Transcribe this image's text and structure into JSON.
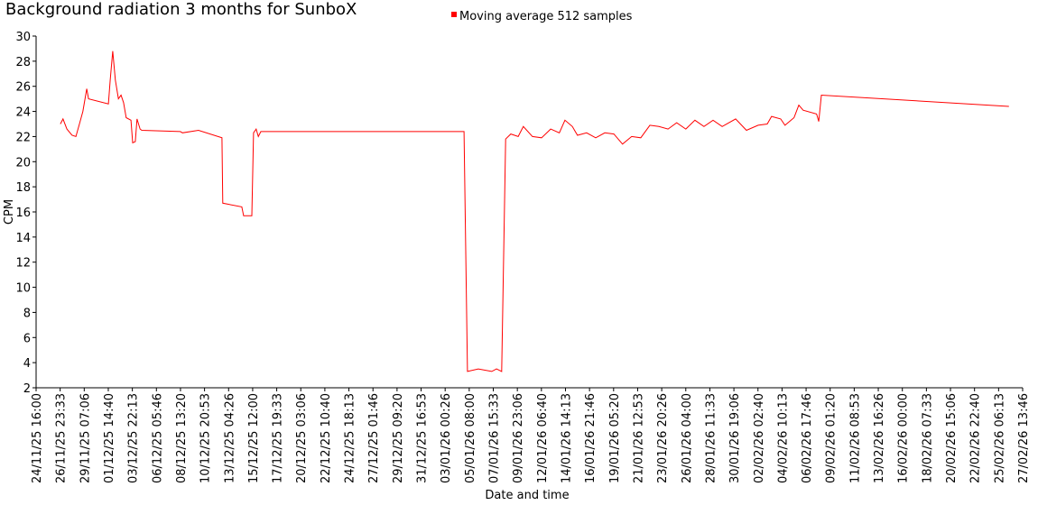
{
  "chart_data": {
    "type": "line",
    "title": "Background radiation 3 months for SunboX",
    "xlabel": "Date and time",
    "ylabel": "CPM",
    "legend": "top",
    "xlim": [
      "24/11/25 16:00",
      "27/02/26 13:46"
    ],
    "xticks": [
      "24/11/25 16:00",
      "26/11/25 23:33",
      "29/11/25 07:06",
      "01/12/25 14:40",
      "03/12/25 22:13",
      "06/12/25 05:46",
      "08/12/25 13:20",
      "10/12/25 20:53",
      "13/12/25 04:26",
      "15/12/25 12:00",
      "17/12/25 19:33",
      "20/12/25 03:06",
      "22/12/25 10:40",
      "24/12/25 18:13",
      "27/12/25 01:46",
      "29/12/25 09:20",
      "31/12/25 16:53",
      "03/01/26 00:26",
      "05/01/26 08:00",
      "07/01/26 15:33",
      "09/01/26 23:06",
      "12/01/26 06:40",
      "14/01/26 14:13",
      "16/01/26 21:46",
      "19/01/26 05:20",
      "21/01/26 12:53",
      "23/01/26 20:26",
      "26/01/26 04:00",
      "28/01/26 11:33",
      "30/01/26 19:06",
      "02/02/26 02:40",
      "04/02/26 10:13",
      "06/02/26 17:46",
      "09/02/26 01:20",
      "11/02/26 08:53",
      "13/02/26 16:26",
      "16/02/26 00:00",
      "18/02/26 07:33",
      "20/02/26 15:06",
      "22/02/26 22:40",
      "25/02/26 06:13",
      "27/02/26 13:46"
    ],
    "ylim": [
      2,
      30
    ],
    "yticks": [
      2,
      4,
      6,
      8,
      10,
      12,
      14,
      16,
      18,
      20,
      22,
      24,
      26,
      28,
      30
    ],
    "x": [
      "27/11/25 00:00",
      "27/11/25 06:00",
      "27/11/25 15:00",
      "28/11/25 03:00",
      "28/11/25 12:00",
      "28/11/25 20:00",
      "29/11/25 04:00",
      "29/11/25 13:00",
      "29/11/25 17:00",
      "01/12/25 15:00",
      "01/12/25 19:00",
      "02/12/25 01:00",
      "02/12/25 07:00",
      "02/12/25 14:00",
      "02/12/25 20:00",
      "03/12/25 02:00",
      "03/12/25 08:00",
      "03/12/25 19:00",
      "03/12/25 23:00",
      "04/12/25 05:00",
      "04/12/25 09:00",
      "04/12/25 16:00",
      "04/12/25 20:00",
      "08/12/25 13:00",
      "08/12/25 18:00",
      "10/12/25 07:00",
      "12/12/25 13:00",
      "12/12/25 15:00",
      "14/12/25 11:00",
      "14/12/25 15:00",
      "15/12/25 10:00",
      "15/12/25 14:00",
      "15/12/25 20:00",
      "16/12/25 01:00",
      "16/12/25 07:00",
      "04/01/26 20:00",
      "05/01/26 04:00",
      "06/01/26 05:00",
      "07/01/26 12:00",
      "07/01/26 23:00",
      "08/01/26 11:00",
      "08/01/26 20:00",
      "09/01/26 08:00",
      "10/01/26 01:00",
      "10/01/26 13:00",
      "11/01/26 10:00",
      "12/01/26 07:00",
      "13/01/26 04:00",
      "14/01/26 00:00",
      "14/01/26 13:00",
      "15/01/26 06:00",
      "15/01/26 18:00",
      "16/01/26 15:00",
      "17/01/26 12:00",
      "18/01/26 09:00",
      "19/01/26 06:00",
      "20/01/26 02:00",
      "20/01/26 23:00",
      "21/01/26 20:00",
      "22/01/26 17:00",
      "23/01/26 14:00",
      "24/01/26 11:00",
      "25/01/26 07:00",
      "26/01/26 04:00",
      "27/01/26 01:00",
      "27/01/26 22:00",
      "28/01/26 19:00",
      "29/01/26 16:00",
      "30/01/26 23:00",
      "01/02/26 00:00",
      "02/02/26 03:00",
      "03/02/26 00:00",
      "03/02/26 10:00",
      "04/02/26 07:00",
      "04/02/26 17:00",
      "05/02/26 14:00",
      "06/02/26 01:00",
      "06/02/26 11:00",
      "07/02/26 18:00",
      "07/02/26 23:00",
      "08/02/26 05:00",
      "26/02/26 06:00"
    ],
    "series": [
      {
        "name": "Moving average 512 samples",
        "color": "#ff0000",
        "values": [
          23.0,
          23.4,
          22.6,
          22.1,
          22.0,
          23.0,
          24.0,
          25.8,
          25.0,
          24.6,
          26.5,
          28.8,
          26.5,
          25.0,
          25.3,
          24.7,
          23.5,
          23.3,
          21.5,
          21.6,
          23.4,
          22.6,
          22.5,
          22.4,
          22.3,
          22.5,
          21.9,
          16.7,
          16.4,
          15.7,
          15.7,
          22.3,
          22.6,
          22.0,
          22.4,
          22.4,
          3.3,
          3.5,
          3.3,
          3.5,
          3.3,
          21.8,
          22.2,
          22.0,
          22.8,
          22.0,
          21.9,
          22.6,
          22.3,
          23.3,
          22.8,
          22.1,
          22.3,
          21.9,
          22.3,
          22.2,
          21.4,
          22.0,
          21.9,
          22.9,
          22.8,
          22.6,
          23.1,
          22.6,
          23.3,
          22.8,
          23.3,
          22.8,
          23.4,
          22.5,
          22.9,
          23.0,
          23.6,
          23.4,
          22.9,
          23.5,
          24.5,
          24.1,
          23.8,
          23.2,
          25.3,
          24.4
        ]
      }
    ]
  }
}
